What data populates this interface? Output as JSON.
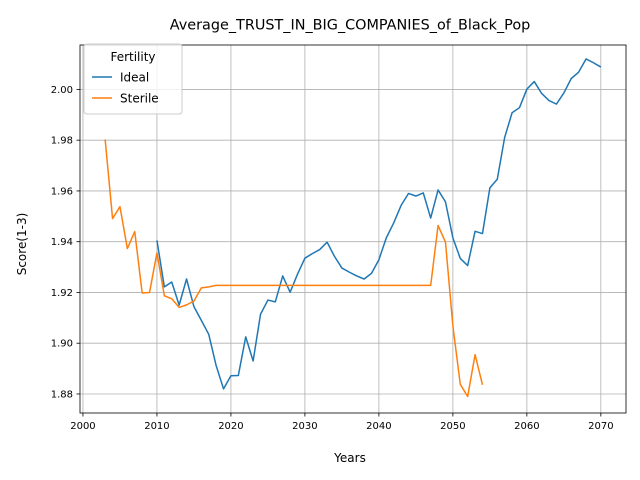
{
  "chart_data": {
    "type": "line",
    "title": "Average_TRUST_IN_BIG_COMPANIES_of_Black_Pop",
    "xlabel": "Years",
    "ylabel": "Score(1-3)",
    "xlim": [
      1999.6,
      2073.4
    ],
    "ylim": [
      1.8725,
      2.0175
    ],
    "xticks": [
      2000,
      2010,
      2020,
      2030,
      2040,
      2050,
      2060,
      2070
    ],
    "yticks": [
      1.88,
      1.9,
      1.92,
      1.94,
      1.96,
      1.98,
      2.0
    ],
    "ytick_labels": [
      "1.88",
      "1.90",
      "1.92",
      "1.94",
      "1.96",
      "1.98",
      "2.00"
    ],
    "grid": true,
    "legend": {
      "title": "Fertility",
      "placement": "top-left"
    },
    "series": [
      {
        "name": "Ideal",
        "color": "#1f77b4",
        "x": [
          2010,
          2011,
          2012,
          2013,
          2014,
          2015,
          2016,
          2017,
          2018,
          2019,
          2020,
          2021,
          2022,
          2023,
          2024,
          2025,
          2026,
          2027,
          2028,
          2029,
          2030,
          2031,
          2032,
          2033,
          2034,
          2035,
          2036,
          2037,
          2038,
          2039,
          2040,
          2041,
          2042,
          2043,
          2044,
          2045,
          2046,
          2047,
          2048,
          2049,
          2050,
          2051,
          2052,
          2053,
          2054,
          2055,
          2056,
          2057,
          2058,
          2059,
          2060,
          2061,
          2062,
          2063,
          2064,
          2065,
          2066,
          2067,
          2068,
          2069,
          2070
        ],
        "values": [
          1.9405,
          1.9222,
          1.9241,
          1.915,
          1.9253,
          1.9144,
          1.909,
          1.9035,
          1.8912,
          1.882,
          1.8872,
          1.8873,
          1.9025,
          1.893,
          1.9114,
          1.917,
          1.9163,
          1.9265,
          1.9201,
          1.9272,
          1.9335,
          1.9353,
          1.9369,
          1.9398,
          1.9342,
          1.9296,
          1.928,
          1.9265,
          1.9253,
          1.9275,
          1.9329,
          1.9415,
          1.9474,
          1.9543,
          1.959,
          1.958,
          1.9592,
          1.9493,
          1.9604,
          1.9557,
          1.9415,
          1.9334,
          1.9306,
          1.9441,
          1.9432,
          1.9612,
          1.9646,
          1.9811,
          1.9908,
          1.9928,
          2.0001,
          2.0031,
          1.9984,
          1.9956,
          1.9942,
          1.9986,
          2.0043,
          2.0068,
          2.012,
          2.0105,
          2.0088
        ]
      },
      {
        "name": "Sterile",
        "color": "#ff7f0e",
        "x": [
          2003,
          2004,
          2005,
          2006,
          2007,
          2008,
          2009,
          2010,
          2011,
          2012,
          2013,
          2014,
          2015,
          2016,
          2017,
          2018,
          2019,
          2020,
          2021,
          2022,
          2023,
          2024,
          2025,
          2026,
          2027,
          2028,
          2029,
          2030,
          2031,
          2032,
          2033,
          2034,
          2035,
          2036,
          2037,
          2038,
          2039,
          2040,
          2041,
          2042,
          2043,
          2044,
          2045,
          2046,
          2047,
          2048,
          2049,
          2050,
          2051,
          2052,
          2053,
          2054
        ],
        "values": [
          1.9803,
          1.9491,
          1.9538,
          1.9373,
          1.944,
          1.9198,
          1.92,
          1.9356,
          1.9187,
          1.9175,
          1.9141,
          1.9151,
          1.9166,
          1.9218,
          1.9222,
          1.9228,
          1.9228,
          1.9228,
          1.9228,
          1.9228,
          1.9228,
          1.9228,
          1.9228,
          1.9228,
          1.9228,
          1.9228,
          1.9228,
          1.9228,
          1.9228,
          1.9228,
          1.9228,
          1.9228,
          1.9228,
          1.9228,
          1.9228,
          1.9228,
          1.9228,
          1.9228,
          1.9228,
          1.9228,
          1.9228,
          1.9228,
          1.9228,
          1.9228,
          1.9228,
          1.9464,
          1.9398,
          1.9068,
          1.8838,
          1.879,
          1.8955,
          1.8836
        ]
      }
    ]
  }
}
